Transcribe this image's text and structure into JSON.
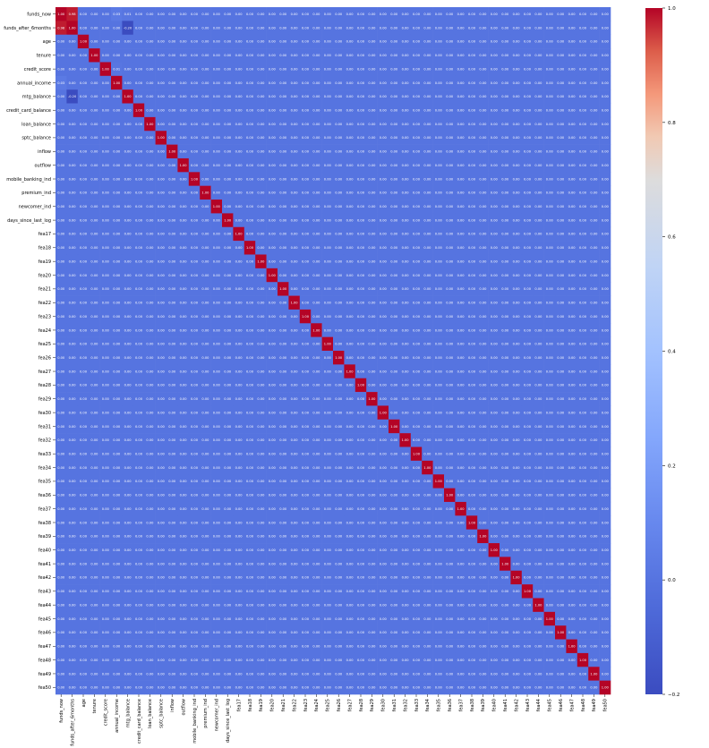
{
  "chart_data": {
    "type": "heatmap",
    "title": "",
    "xlabel": "",
    "ylabel": "",
    "labels": [
      "funds_now",
      "funds_after_6months",
      "age",
      "tenure",
      "credit_score",
      "annual_income",
      "mtg_balance",
      "credit_card_balance",
      "loan_balance",
      "sptc_balance",
      "inflow",
      "outflow",
      "mobile_banking_ind",
      "premium_ind",
      "newcomer_ind",
      "days_since_last_log",
      "fea17",
      "fea18",
      "fea19",
      "fea20",
      "fea21",
      "fea22",
      "fea23",
      "fea24",
      "fea25",
      "fea26",
      "fea27",
      "fea28",
      "fea29",
      "fea30",
      "fea31",
      "fea32",
      "fea33",
      "fea34",
      "fea35",
      "fea36",
      "fea37",
      "fea38",
      "fea39",
      "fea40",
      "fea41",
      "fea42",
      "fea43",
      "fea44",
      "fea45",
      "fea46",
      "fea47",
      "fea48",
      "fea49",
      "fea50"
    ],
    "diagonal_value": 1.0,
    "off_diagonal_value": 0.0,
    "notable_cells": [
      {
        "row": "funds_now",
        "col": "funds_after_6months",
        "value": 0.98
      },
      {
        "row": "funds_after_6months",
        "col": "funds_now",
        "value": 0.98
      },
      {
        "row": "funds_after_6months",
        "col": "mtg_balance",
        "value": -0.2
      },
      {
        "row": "mtg_balance",
        "col": "funds_after_6months",
        "value": -0.2
      },
      {
        "row": "funds_now",
        "col": "mtg_balance",
        "value": 0.01
      },
      {
        "row": "funds_now",
        "col": "annual_income",
        "value": 0.03
      },
      {
        "row": "annual_income",
        "col": "funds_now",
        "value": 0.03
      },
      {
        "row": "credit_score",
        "col": "annual_income",
        "value": 0.01
      }
    ],
    "annotation_format": "2 decimals",
    "colormap": "coolwarm",
    "vmin": -0.2,
    "vmax": 1.0,
    "colorbar_ticks": [
      1.0,
      0.8,
      0.6,
      0.4,
      0.2,
      0.0,
      -0.2
    ],
    "colorbar_tick_labels": [
      "1.0",
      "0.8",
      "0.6",
      "0.4",
      "0.2",
      "0.0",
      "−0.2"
    ]
  }
}
